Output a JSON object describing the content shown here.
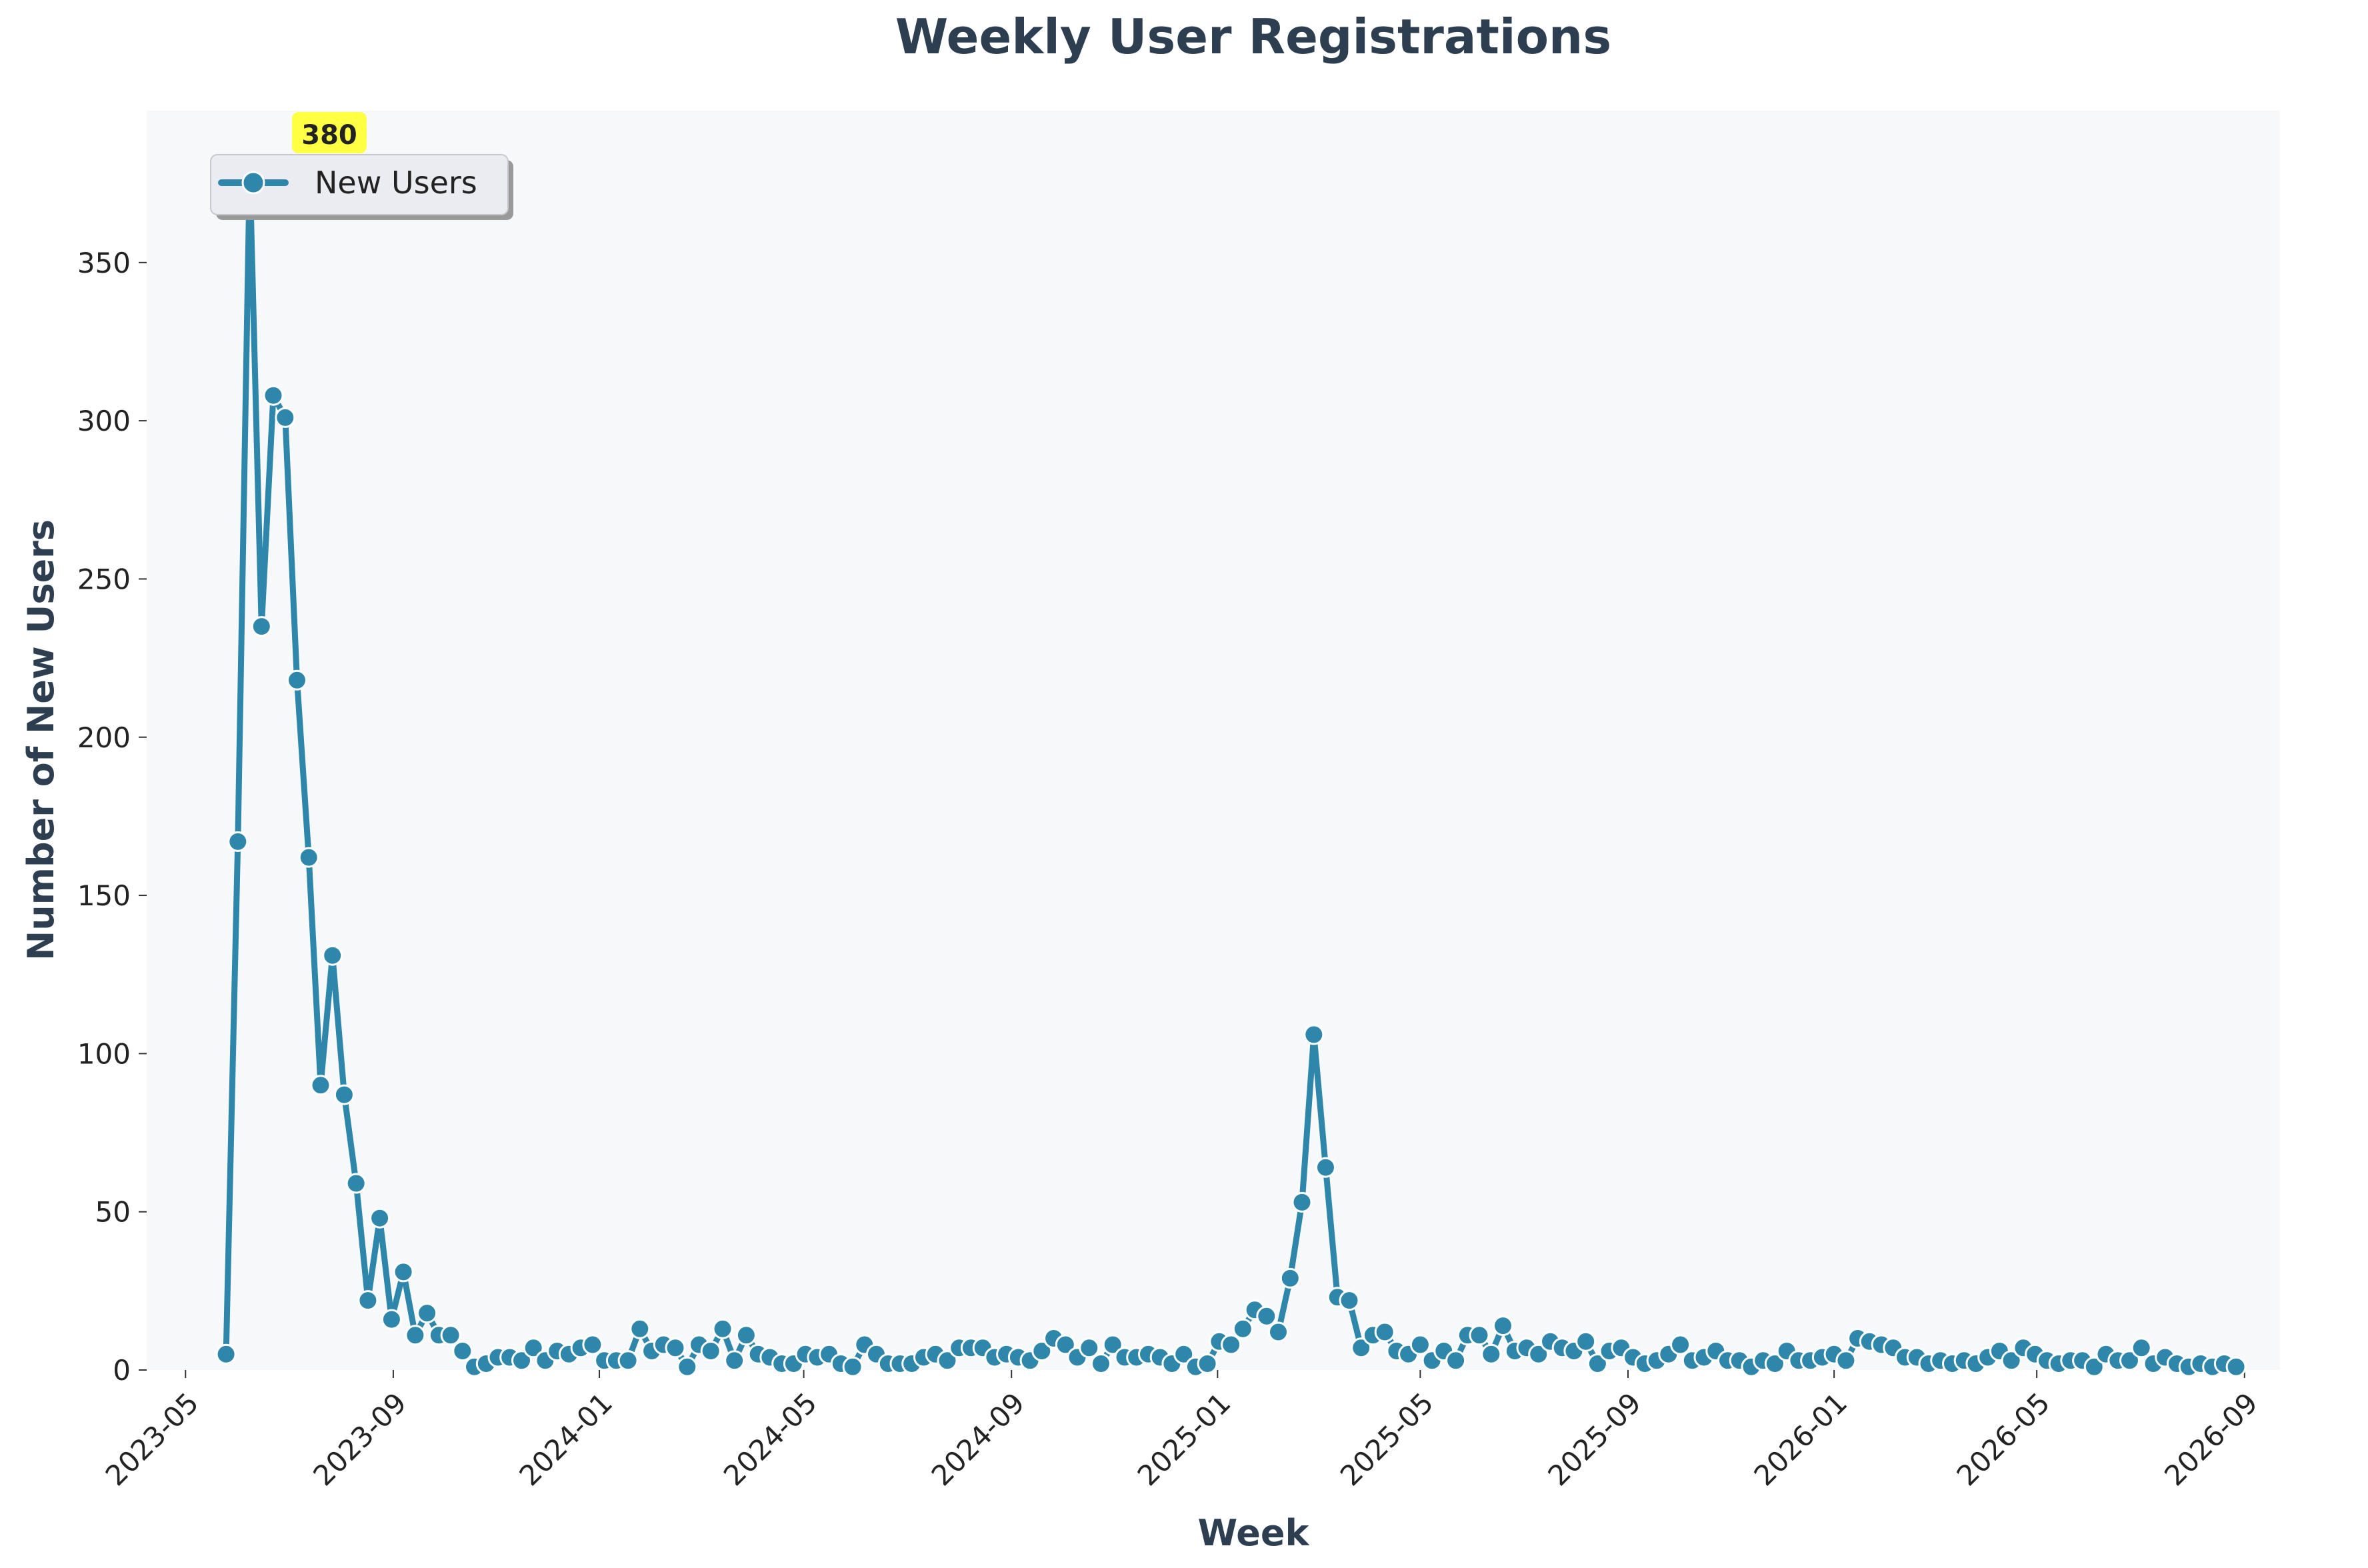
{
  "chart_data": {
    "type": "line",
    "title": "Weekly User Registrations",
    "xlabel": "Week",
    "ylabel": "Number of New Users",
    "x_tick_labels": [
      "2023-05",
      "2023-09",
      "2024-01",
      "2024-05",
      "2024-09",
      "2025-01",
      "2025-05",
      "2025-09",
      "2026-01",
      "2026-05",
      "2026-09"
    ],
    "y_ticks": [
      0,
      50,
      100,
      150,
      200,
      250,
      300,
      350
    ],
    "xlim": [
      "2023-04-08",
      "2026-09-22"
    ],
    "ylim": [
      0,
      398
    ],
    "grid": false,
    "legend_position": "upper-left",
    "series": [
      {
        "name": "New Users",
        "color": "#2e86ab",
        "x_start": "2023-05-25",
        "x_interval_days": 7,
        "values": [
          5,
          167,
          380,
          235,
          308,
          301,
          218,
          162,
          90,
          131,
          87,
          59,
          22,
          48,
          16,
          31,
          11,
          18,
          11,
          11,
          6,
          1,
          2,
          4,
          4,
          3,
          7,
          3,
          6,
          5,
          7,
          8,
          3,
          3,
          3,
          13,
          6,
          8,
          7,
          1,
          8,
          6,
          13,
          3,
          11,
          5,
          4,
          2,
          2,
          5,
          4,
          5,
          2,
          1,
          8,
          5,
          2,
          2,
          2,
          4,
          5,
          3,
          7,
          7,
          7,
          4,
          5,
          4,
          3,
          6,
          10,
          8,
          4,
          7,
          2,
          8,
          4,
          4,
          5,
          4,
          2,
          5,
          1,
          2,
          9,
          8,
          13,
          19,
          17,
          12,
          29,
          53,
          106,
          64,
          23,
          22,
          7,
          11,
          12,
          6,
          5,
          8,
          3,
          6,
          3,
          11,
          11,
          5,
          14,
          6,
          7,
          5,
          9,
          7,
          6,
          9,
          2,
          6,
          7,
          4,
          2,
          3,
          5,
          8,
          3,
          4,
          6,
          3,
          3,
          1,
          3,
          2,
          6,
          3,
          3,
          4,
          5,
          3,
          10,
          9,
          8,
          7,
          4,
          4,
          2,
          3,
          2,
          3,
          2,
          4,
          6,
          3,
          7,
          5,
          3,
          2,
          3,
          3,
          1,
          5,
          3,
          3,
          7,
          2,
          4,
          2,
          1,
          2,
          1,
          2,
          1
        ]
      }
    ],
    "annotation": {
      "text": "380",
      "highlight_color": "#ffff44"
    }
  }
}
